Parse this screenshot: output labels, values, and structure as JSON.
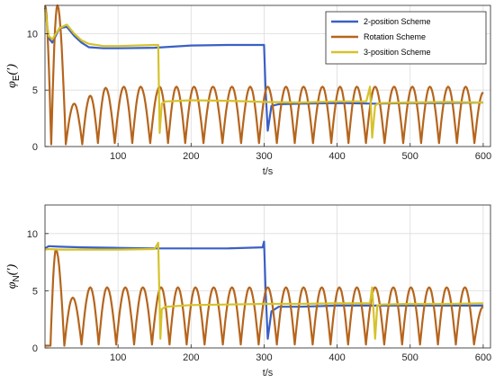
{
  "chart_data": [
    {
      "type": "line",
      "panel": "top",
      "ylabel_symbol": "φ",
      "ylabel_sub": "E",
      "ylabel_unit": "(′)",
      "xlabel": "t/s",
      "xlim": [
        0,
        610
      ],
      "ylim": [
        0,
        12.5
      ],
      "xticks": [
        100,
        200,
        300,
        400,
        500,
        600
      ],
      "yticks": [
        0,
        5,
        10
      ],
      "grid": true,
      "legend_position": "top-right",
      "colors": {
        "2-position Scheme": "#3a60c4",
        "Rotation Scheme": "#b5651d",
        "3-position Scheme": "#d6c22b"
      },
      "series": [
        {
          "name": "2-position Scheme",
          "x": [
            0,
            5,
            10,
            20,
            30,
            40,
            50,
            60,
            80,
            100,
            150,
            200,
            250,
            300,
            302,
            305,
            310,
            320,
            350,
            400,
            450,
            500,
            550,
            600
          ],
          "y": [
            12.3,
            9.6,
            9.2,
            10.5,
            10.6,
            9.8,
            9.2,
            8.8,
            8.7,
            8.7,
            8.75,
            8.95,
            9.0,
            9.0,
            5.0,
            1.4,
            3.6,
            3.75,
            3.8,
            3.85,
            3.8,
            3.85,
            3.85,
            3.9
          ]
        },
        {
          "name": "Rotation Scheme",
          "peaks_x": [
            0,
            17,
            40,
            62,
            83,
            108,
            131,
            157,
            180,
            204,
            230,
            256,
            281,
            305,
            330,
            354,
            380,
            404,
            427,
            452,
            478,
            503,
            527,
            552,
            576,
            600
          ],
          "peaks_y": [
            12.5,
            12.5,
            3.8,
            4.5,
            5.2,
            5.3,
            5.3,
            5.3,
            5.3,
            5.3,
            5.3,
            5.3,
            5.3,
            5.3,
            5.3,
            5.3,
            5.3,
            5.3,
            5.3,
            5.3,
            5.3,
            5.3,
            5.3,
            5.3,
            5.3,
            4.8
          ],
          "troughs_y": [
            0.2,
            0.2,
            0.2,
            0.3,
            0.3,
            0.3,
            0.3,
            0.3,
            0.3,
            0.3,
            0.3,
            0.3,
            0.3,
            0.3,
            0.3,
            0.3,
            0.3,
            0.3,
            0.3,
            0.3,
            0.3,
            0.3,
            0.3,
            0.3,
            0.3
          ]
        },
        {
          "name": "3-position Scheme",
          "x": [
            0,
            5,
            10,
            20,
            30,
            40,
            50,
            60,
            80,
            100,
            150,
            155,
            157,
            160,
            165,
            200,
            250,
            300,
            350,
            400,
            440,
            445,
            448,
            452,
            455,
            460,
            500,
            550,
            600
          ],
          "y": [
            12.2,
            9.8,
            9.5,
            10.5,
            10.8,
            10.0,
            9.4,
            9.1,
            8.9,
            8.9,
            9.0,
            9.0,
            1.2,
            3.8,
            4.0,
            4.1,
            4.05,
            3.95,
            3.9,
            4.0,
            4.0,
            5.3,
            0.8,
            3.6,
            3.8,
            3.85,
            3.9,
            3.95,
            3.9
          ]
        }
      ]
    },
    {
      "type": "line",
      "panel": "bottom",
      "ylabel_symbol": "φ",
      "ylabel_sub": "N",
      "ylabel_unit": "(′)",
      "xlabel": "t/s",
      "xlim": [
        0,
        610
      ],
      "ylim": [
        0,
        12.5
      ],
      "xticks": [
        100,
        200,
        300,
        400,
        500,
        600
      ],
      "yticks": [
        0,
        5,
        10
      ],
      "grid": true,
      "colors": {
        "2-position Scheme": "#3a60c4",
        "Rotation Scheme": "#b5651d",
        "3-position Scheme": "#d6c22b"
      },
      "series": [
        {
          "name": "2-position Scheme",
          "x": [
            0,
            5,
            20,
            50,
            100,
            150,
            200,
            250,
            298,
            300,
            302,
            305,
            310,
            320,
            350,
            400,
            450,
            500,
            550,
            600
          ],
          "y": [
            8.7,
            8.9,
            8.85,
            8.8,
            8.75,
            8.7,
            8.7,
            8.7,
            8.8,
            9.3,
            5.0,
            0.8,
            3.2,
            3.6,
            3.6,
            3.7,
            3.7,
            3.7,
            3.7,
            3.7
          ]
        },
        {
          "name": "Rotation Scheme",
          "peaks_x": [
            0,
            15,
            38,
            62,
            85,
            110,
            134,
            159,
            182,
            206,
            231,
            256,
            280,
            305,
            330,
            354,
            379,
            403,
            427,
            452,
            477,
            501,
            526,
            550,
            575,
            600
          ],
          "peaks_y": [
            0.2,
            8.6,
            4.4,
            5.3,
            5.3,
            5.3,
            5.3,
            5.3,
            5.3,
            5.3,
            5.3,
            5.3,
            5.3,
            5.3,
            5.3,
            5.3,
            5.3,
            5.3,
            5.3,
            5.3,
            5.3,
            5.3,
            5.3,
            5.3,
            5.3,
            3.6
          ],
          "troughs_y": [
            0.2,
            0.2,
            0.3,
            0.3,
            0.3,
            0.3,
            0.3,
            0.3,
            0.3,
            0.3,
            0.3,
            0.3,
            0.3,
            0.3,
            0.3,
            0.3,
            0.3,
            0.3,
            0.3,
            0.3,
            0.3,
            0.3,
            0.3,
            0.3,
            0.3
          ]
        },
        {
          "name": "3-position Scheme",
          "x": [
            0,
            5,
            20,
            50,
            100,
            150,
            155,
            158,
            160,
            165,
            200,
            250,
            300,
            350,
            400,
            445,
            448,
            452,
            455,
            460,
            500,
            550,
            600
          ],
          "y": [
            8.6,
            8.65,
            8.6,
            8.6,
            8.6,
            8.65,
            9.2,
            0.8,
            3.4,
            3.6,
            3.75,
            3.8,
            3.85,
            3.85,
            3.9,
            3.9,
            5.3,
            0.8,
            3.7,
            3.8,
            3.85,
            3.85,
            3.9
          ]
        }
      ]
    }
  ]
}
